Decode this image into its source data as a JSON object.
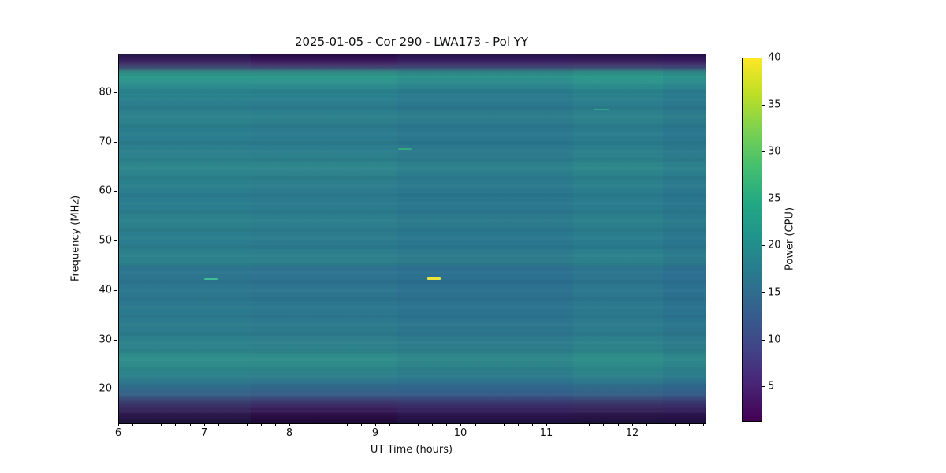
{
  "figure": {
    "background": "#ffffff"
  },
  "chart_data": {
    "type": "heatmap",
    "title": "2025-01-05 - Cor 290 - LWA173 - Pol YY",
    "xlabel": "UT Time (hours)",
    "ylabel": "Frequency (MHz)",
    "x_range": [
      6.0,
      12.85
    ],
    "y_range": [
      13.2,
      87.8
    ],
    "x_major_ticks": [
      6,
      7,
      8,
      9,
      10,
      11,
      12
    ],
    "x_minor_tick_step_hours": 0.16667,
    "y_major_ticks": [
      20,
      30,
      40,
      50,
      60,
      70,
      80
    ],
    "grid": "off",
    "colorbar": {
      "label": "Power (CPU)",
      "ticks": [
        5,
        10,
        15,
        20,
        25,
        30,
        35,
        40
      ],
      "range": [
        1.4,
        40
      ],
      "colormap": "viridis",
      "gradient_stops": [
        {
          "value": 0.0,
          "color": "#440154"
        },
        {
          "value": 0.1,
          "color": "#482475"
        },
        {
          "value": 0.2,
          "color": "#414487"
        },
        {
          "value": 0.3,
          "color": "#355f8d"
        },
        {
          "value": 0.4,
          "color": "#2a788e"
        },
        {
          "value": 0.5,
          "color": "#21918c"
        },
        {
          "value": 0.6,
          "color": "#22a884"
        },
        {
          "value": 0.7,
          "color": "#44bf70"
        },
        {
          "value": 0.8,
          "color": "#7ad151"
        },
        {
          "value": 0.9,
          "color": "#bddf26"
        },
        {
          "value": 1.0,
          "color": "#fde725"
        }
      ]
    },
    "background_profile": [
      {
        "freq": 87.8,
        "color": "#260a42"
      },
      {
        "freq": 86.8,
        "color": "#361457"
      },
      {
        "freq": 85.8,
        "color": "#432a66"
      },
      {
        "freq": 85.0,
        "color": "#3f4f74"
      },
      {
        "freq": 84.2,
        "color": "#319088"
      },
      {
        "freq": 83.4,
        "color": "#2f9c8c"
      },
      {
        "freq": 82.0,
        "color": "#2d8f8d"
      },
      {
        "freq": 80.0,
        "color": "#2b818e"
      },
      {
        "freq": 77.5,
        "color": "#2c7c8e"
      },
      {
        "freq": 75.0,
        "color": "#2d818c"
      },
      {
        "freq": 72.0,
        "color": "#2b7a8e"
      },
      {
        "freq": 68.0,
        "color": "#2c7e8d"
      },
      {
        "freq": 65.0,
        "color": "#2e868b"
      },
      {
        "freq": 62.0,
        "color": "#2c7e8d"
      },
      {
        "freq": 58.0,
        "color": "#2b7a8e"
      },
      {
        "freq": 54.0,
        "color": "#2c7f8c"
      },
      {
        "freq": 50.0,
        "color": "#2b7a8e"
      },
      {
        "freq": 46.5,
        "color": "#2d808c"
      },
      {
        "freq": 45.2,
        "color": "#2d7f8c"
      },
      {
        "freq": 44.8,
        "color": "#2e7290"
      },
      {
        "freq": 40.0,
        "color": "#2d748f"
      },
      {
        "freq": 36.0,
        "color": "#2c778e"
      },
      {
        "freq": 32.0,
        "color": "#2d7a8d"
      },
      {
        "freq": 28.0,
        "color": "#2e838b"
      },
      {
        "freq": 26.5,
        "color": "#2f8d89"
      },
      {
        "freq": 24.5,
        "color": "#2e8a8a"
      },
      {
        "freq": 22.5,
        "color": "#2d7d8c"
      },
      {
        "freq": 20.5,
        "color": "#326b8e"
      },
      {
        "freq": 19.0,
        "color": "#375a85"
      },
      {
        "freq": 17.8,
        "color": "#3d3f72"
      },
      {
        "freq": 16.5,
        "color": "#3c2560"
      },
      {
        "freq": 15.2,
        "color": "#30104b"
      },
      {
        "freq": 13.2,
        "color": "#1c0733"
      }
    ],
    "time_overlays": [
      {
        "t1": 6.0,
        "t2": 7.55,
        "color": "rgba(46,160,140,0.07)"
      },
      {
        "t1": 9.25,
        "t2": 11.3,
        "color": "rgba(38,90,150,0.10)"
      },
      {
        "t1": 11.3,
        "t2": 12.35,
        "color": "rgba(45,150,135,0.05)"
      },
      {
        "t1": 12.35,
        "t2": 12.85,
        "color": "rgba(35,80,140,0.09)"
      }
    ],
    "features": [
      {
        "time_h": 7.07,
        "freq_mhz": 42.3,
        "duration_h": 0.16,
        "color": "#3fbe93",
        "thickness_px": 2
      },
      {
        "time_h": 9.34,
        "freq_mhz": 68.7,
        "duration_h": 0.16,
        "color": "#36a87d",
        "thickness_px": 2
      },
      {
        "time_h": 9.68,
        "freq_mhz": 42.4,
        "duration_h": 0.16,
        "color": "#eae53d",
        "thickness_px": 3
      },
      {
        "time_h": 11.63,
        "freq_mhz": 76.6,
        "duration_h": 0.17,
        "color": "#31a38b",
        "thickness_px": 2
      }
    ]
  }
}
